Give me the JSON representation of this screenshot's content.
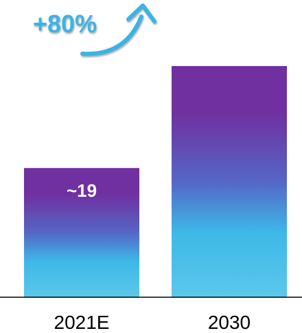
{
  "chart_data": {
    "type": "bar",
    "categories": [
      "2021E",
      "2030"
    ],
    "values": [
      19,
      34
    ],
    "data_labels": [
      "~19",
      ""
    ],
    "ylim": [
      0,
      34
    ],
    "grid": false,
    "legend": "none",
    "annotation": "+80%",
    "colors": {
      "bar_top": "#7030A0",
      "bar_mid": "#5566C6",
      "bar_bottom": "#5BC8EA",
      "annotation": "#3BB3E6",
      "axis": "#000000",
      "text": "#000000",
      "data_label": "#ffffff"
    }
  }
}
